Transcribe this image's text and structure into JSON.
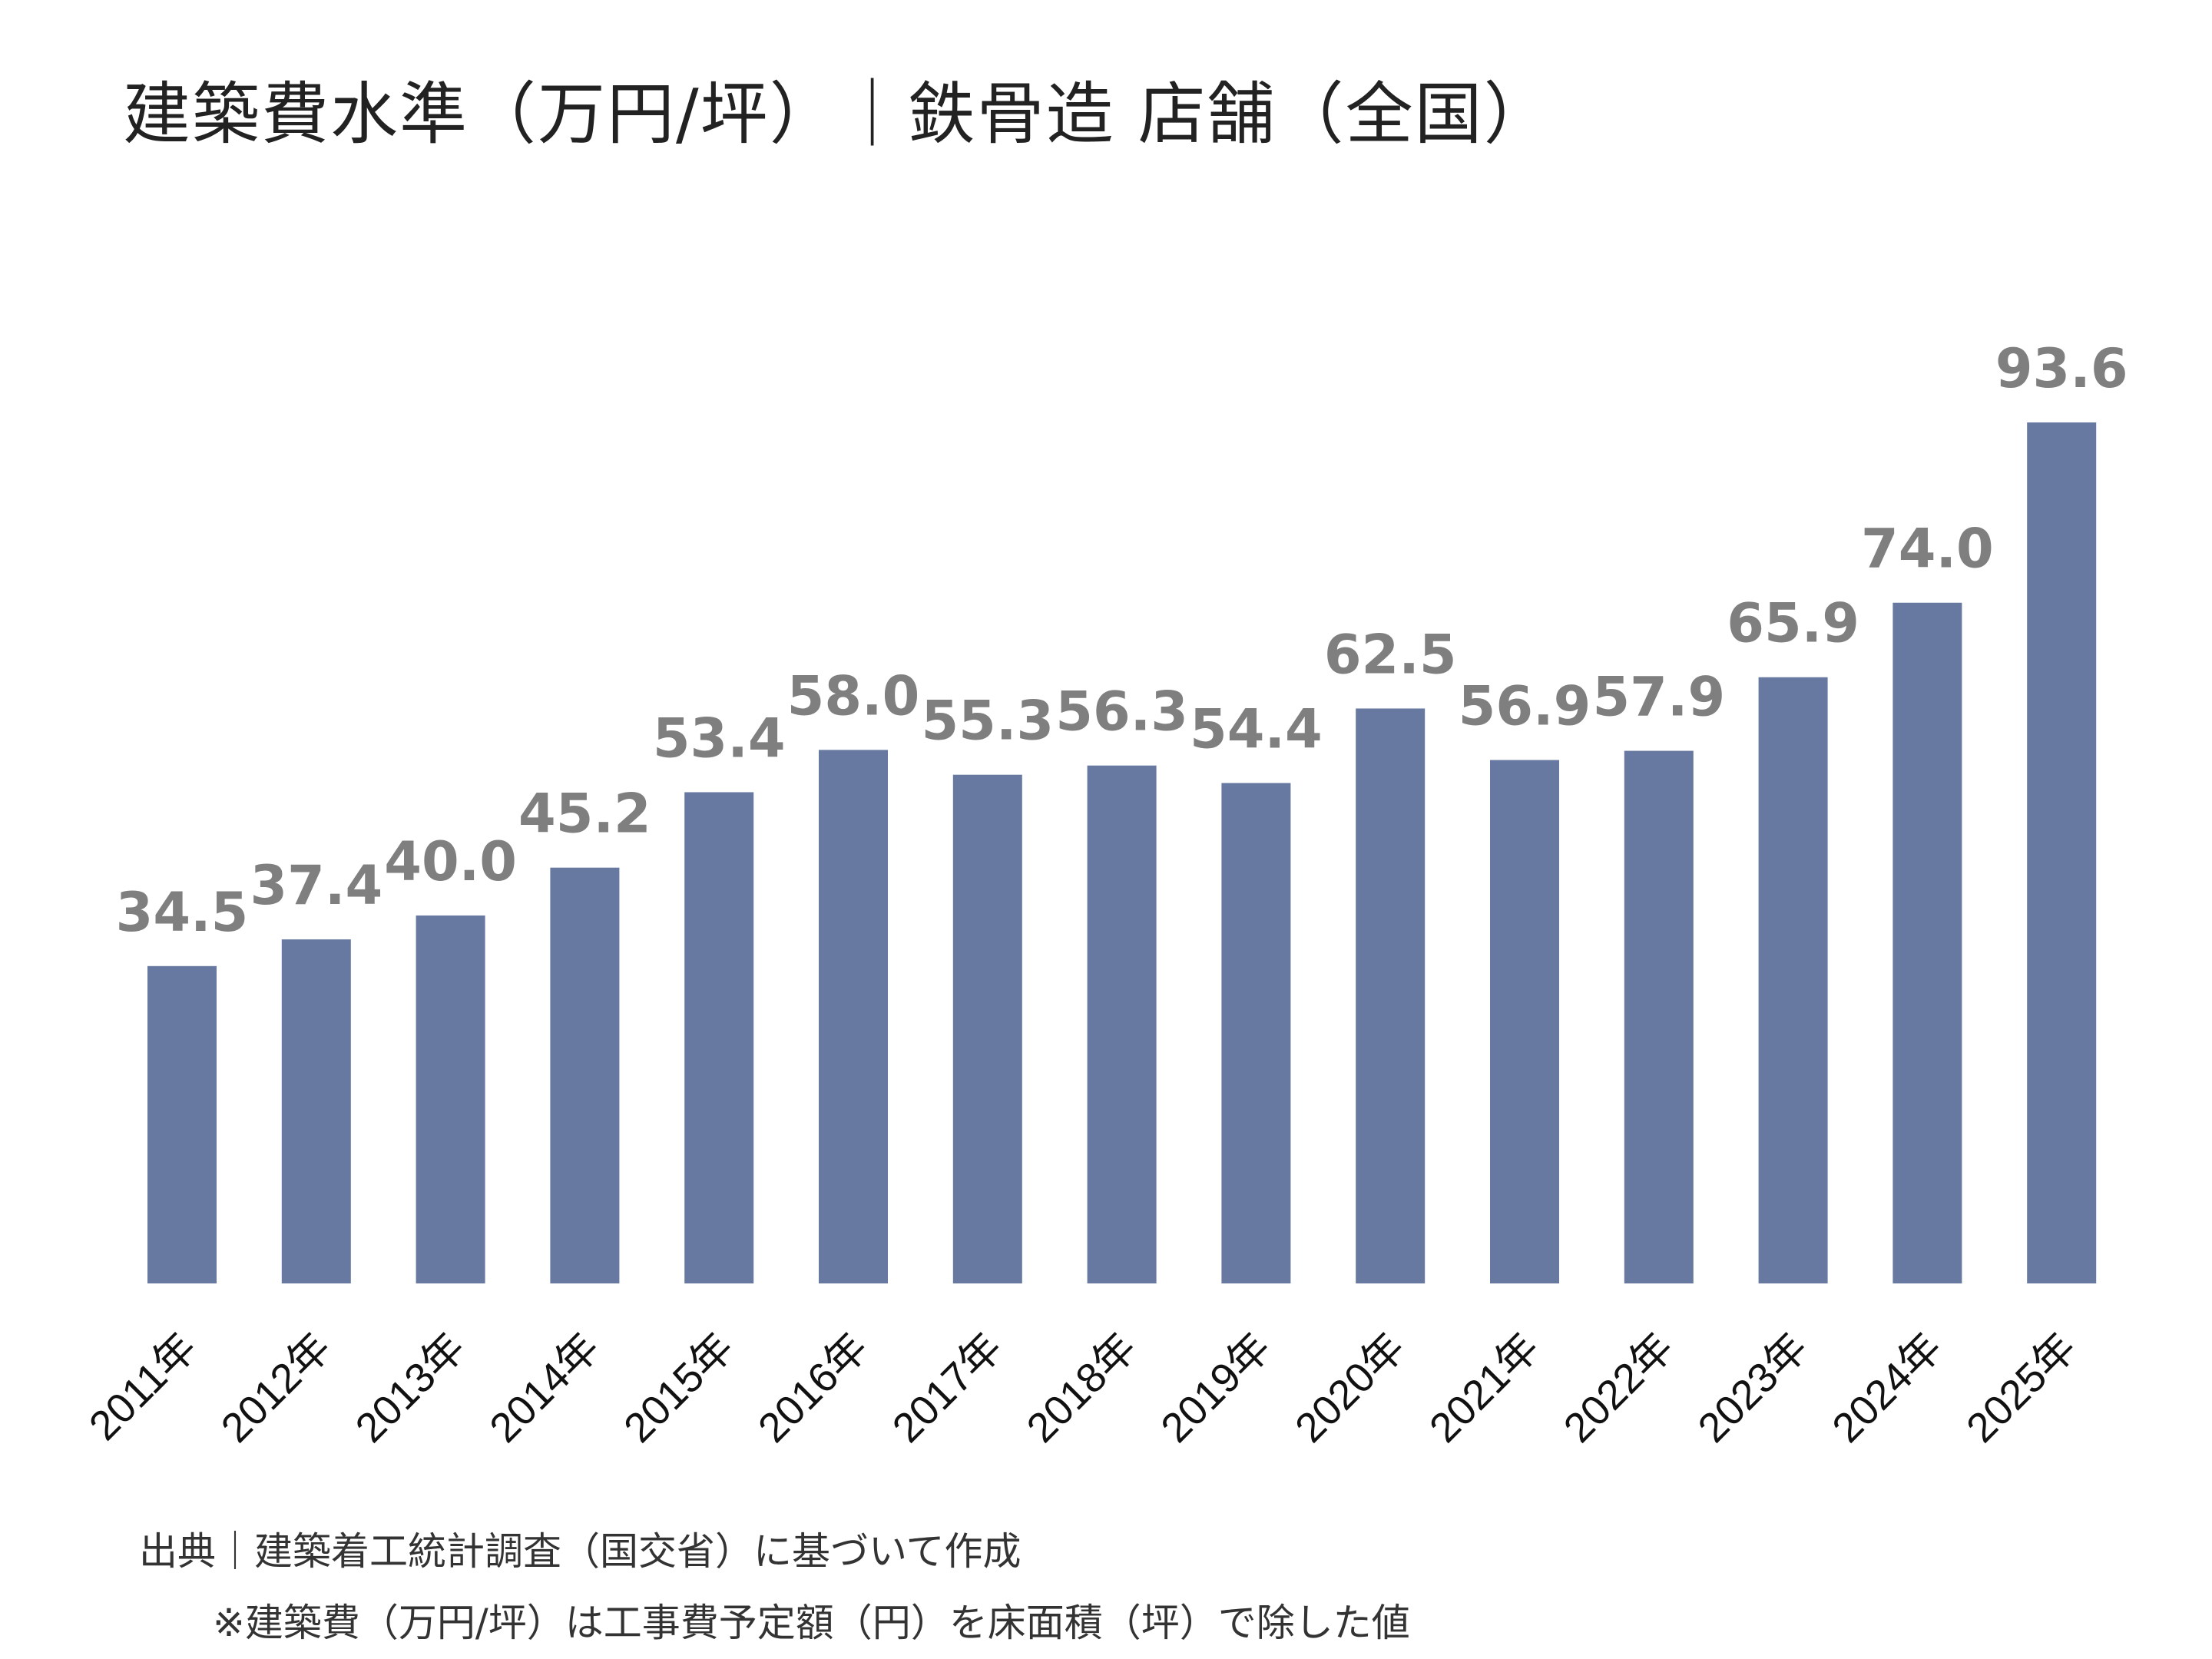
{
  "chart_data": {
    "type": "bar",
    "title": "建築費水準（万円/坪）｜鉄骨造 店舗（全国）",
    "categories": [
      "2011年",
      "2012年",
      "2013年",
      "2014年",
      "2015年",
      "2016年",
      "2017年",
      "2018年",
      "2019年",
      "2020年",
      "2021年",
      "2022年",
      "2023年",
      "2024年",
      "2025年"
    ],
    "values": [
      34.5,
      37.4,
      40.0,
      45.2,
      53.4,
      58.0,
      55.3,
      56.3,
      54.4,
      62.5,
      56.9,
      57.9,
      65.9,
      74.0,
      93.6
    ],
    "data_labels": [
      "34.5",
      "37.4",
      "40.0",
      "45.2",
      "53.4",
      "58.0",
      "55.3",
      "56.3",
      "54.4",
      "62.5",
      "56.9",
      "57.9",
      "65.9",
      "74.0",
      "93.6"
    ],
    "xlabel": "",
    "ylabel": "",
    "ylim": [
      0,
      93.6
    ],
    "grid": false,
    "legend": "none",
    "bar_color": "#6779a0",
    "label_color": "#7f7f7f"
  },
  "notes": {
    "source": "出典｜建築着工統計調査（国交省）に基づいて作成",
    "footnote": "※建築費（万円/坪）は工事費予定額（円）を床面積（坪）で除した値"
  }
}
